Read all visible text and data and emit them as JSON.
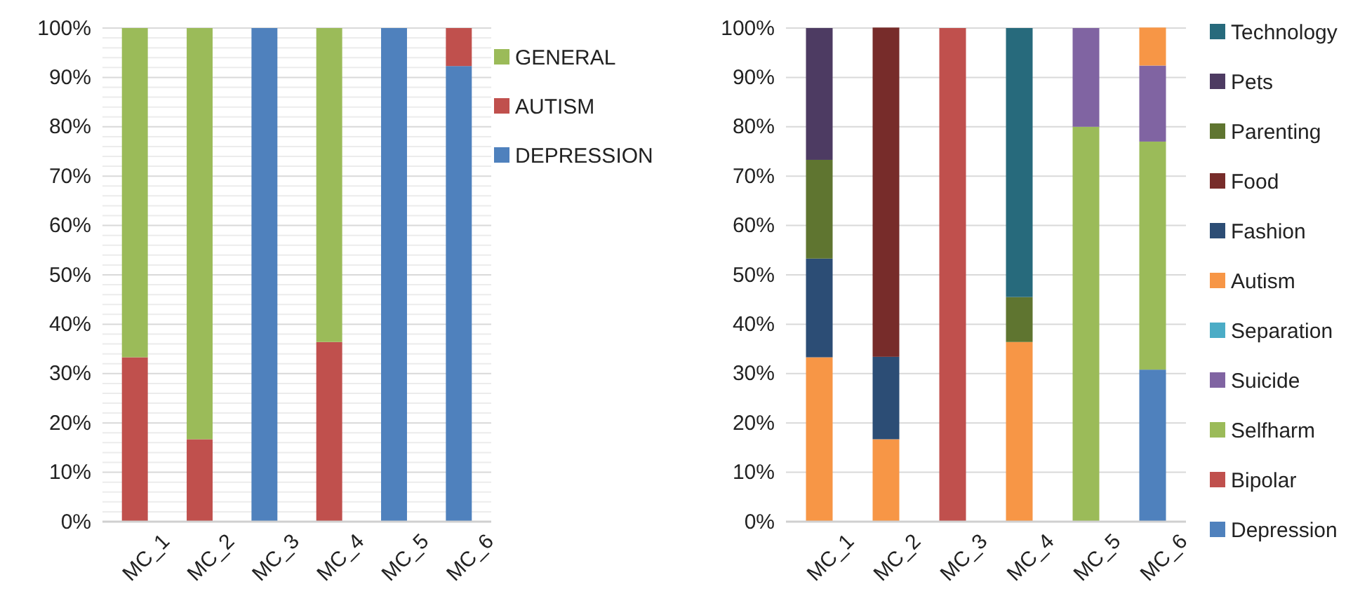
{
  "chart_data": [
    {
      "type": "bar",
      "stacked": true,
      "categories": [
        "MC_1",
        "MC_2",
        "MC_3",
        "MC_4",
        "MC_5",
        "MC_6"
      ],
      "ylim": [
        0,
        100
      ],
      "yticks": [
        {
          "value": 0,
          "label": "0%"
        },
        {
          "value": 2,
          "label": null
        },
        {
          "value": 4,
          "label": null
        },
        {
          "value": 6,
          "label": null
        },
        {
          "value": 8,
          "label": null
        },
        {
          "value": 10,
          "label": "10%"
        },
        {
          "value": 12,
          "label": null
        },
        {
          "value": 14,
          "label": null
        },
        {
          "value": 16,
          "label": null
        },
        {
          "value": 18,
          "label": null
        },
        {
          "value": 20,
          "label": "20%"
        },
        {
          "value": 22,
          "label": null
        },
        {
          "value": 24,
          "label": null
        },
        {
          "value": 26,
          "label": null
        },
        {
          "value": 28,
          "label": null
        },
        {
          "value": 30,
          "label": "30%"
        },
        {
          "value": 32,
          "label": null
        },
        {
          "value": 34,
          "label": null
        },
        {
          "value": 36,
          "label": null
        },
        {
          "value": 38,
          "label": null
        },
        {
          "value": 40,
          "label": "40%"
        },
        {
          "value": 42,
          "label": null
        },
        {
          "value": 44,
          "label": null
        },
        {
          "value": 46,
          "label": null
        },
        {
          "value": 48,
          "label": null
        },
        {
          "value": 50,
          "label": "50%"
        },
        {
          "value": 52,
          "label": null
        },
        {
          "value": 54,
          "label": null
        },
        {
          "value": 56,
          "label": null
        },
        {
          "value": 58,
          "label": null
        },
        {
          "value": 60,
          "label": "60%"
        },
        {
          "value": 62,
          "label": null
        },
        {
          "value": 64,
          "label": null
        },
        {
          "value": 66,
          "label": null
        },
        {
          "value": 68,
          "label": null
        },
        {
          "value": 70,
          "label": "70%"
        },
        {
          "value": 72,
          "label": null
        },
        {
          "value": 74,
          "label": null
        },
        {
          "value": 76,
          "label": null
        },
        {
          "value": 78,
          "label": null
        },
        {
          "value": 80,
          "label": "80%"
        },
        {
          "value": 82,
          "label": null
        },
        {
          "value": 84,
          "label": null
        },
        {
          "value": 86,
          "label": null
        },
        {
          "value": 88,
          "label": null
        },
        {
          "value": 90,
          "label": "90%"
        },
        {
          "value": 92,
          "label": null
        },
        {
          "value": 94,
          "label": null
        },
        {
          "value": 96,
          "label": null
        },
        {
          "value": 98,
          "label": null
        },
        {
          "value": 100,
          "label": "100%"
        }
      ],
      "grid": "y",
      "legend": "right",
      "series": [
        {
          "name": "DEPRESSION",
          "color": "#4f81bd",
          "values": [
            null,
            null,
            100,
            null,
            100,
            92.3
          ]
        },
        {
          "name": "AUTISM",
          "color": "#c0504d",
          "values": [
            33.3,
            16.7,
            null,
            36.4,
            null,
            7.7
          ]
        },
        {
          "name": "GENERAL",
          "color": "#9bbb59",
          "values": [
            66.7,
            83.3,
            null,
            63.6,
            null,
            null
          ]
        }
      ]
    },
    {
      "type": "bar",
      "stacked": true,
      "categories": [
        "MC_1",
        "MC_2",
        "MC_3",
        "MC_4",
        "MC_5",
        "MC_6"
      ],
      "ylim": [
        0,
        100
      ],
      "yticks": [
        {
          "value": 0,
          "label": "0%"
        },
        {
          "value": 10,
          "label": "10%"
        },
        {
          "value": 20,
          "label": "20%"
        },
        {
          "value": 30,
          "label": "30%"
        },
        {
          "value": 40,
          "label": "40%"
        },
        {
          "value": 50,
          "label": "50%"
        },
        {
          "value": 60,
          "label": "60%"
        },
        {
          "value": 70,
          "label": "70%"
        },
        {
          "value": 80,
          "label": "80%"
        },
        {
          "value": 90,
          "label": "90%"
        },
        {
          "value": 100,
          "label": "100%"
        }
      ],
      "grid": "y",
      "legend": "right",
      "series": [
        {
          "name": "Depression",
          "color": "#4f81bd",
          "values": [
            null,
            null,
            null,
            null,
            null,
            30.8
          ]
        },
        {
          "name": "Bipolar",
          "color": "#c0504d",
          "values": [
            null,
            null,
            100,
            null,
            null,
            null
          ]
        },
        {
          "name": "Selfharm",
          "color": "#9bbb59",
          "values": [
            null,
            null,
            null,
            null,
            80,
            46.2
          ]
        },
        {
          "name": "Suicide",
          "color": "#8064a2",
          "values": [
            null,
            null,
            null,
            null,
            20,
            15.4
          ]
        },
        {
          "name": "Separation",
          "color": "#4bacc6",
          "values": [
            null,
            null,
            null,
            null,
            null,
            null
          ]
        },
        {
          "name": "Autism",
          "color": "#f79646",
          "values": [
            33.3,
            16.7,
            null,
            36.4,
            null,
            7.7
          ]
        },
        {
          "name": "Fashion",
          "color": "#2c4d75",
          "values": [
            20,
            16.7,
            null,
            null,
            null,
            null
          ]
        },
        {
          "name": "Food",
          "color": "#772c2a",
          "values": [
            null,
            66.7,
            null,
            null,
            null,
            null
          ]
        },
        {
          "name": "Parenting",
          "color": "#5f7530",
          "values": [
            20,
            null,
            null,
            9.1,
            null,
            null
          ]
        },
        {
          "name": "Pets",
          "color": "#4d3b62",
          "values": [
            26.7,
            null,
            null,
            null,
            null,
            null
          ]
        },
        {
          "name": "Technology",
          "color": "#276a7c",
          "values": [
            null,
            null,
            null,
            54.5,
            null,
            null
          ]
        }
      ]
    }
  ]
}
